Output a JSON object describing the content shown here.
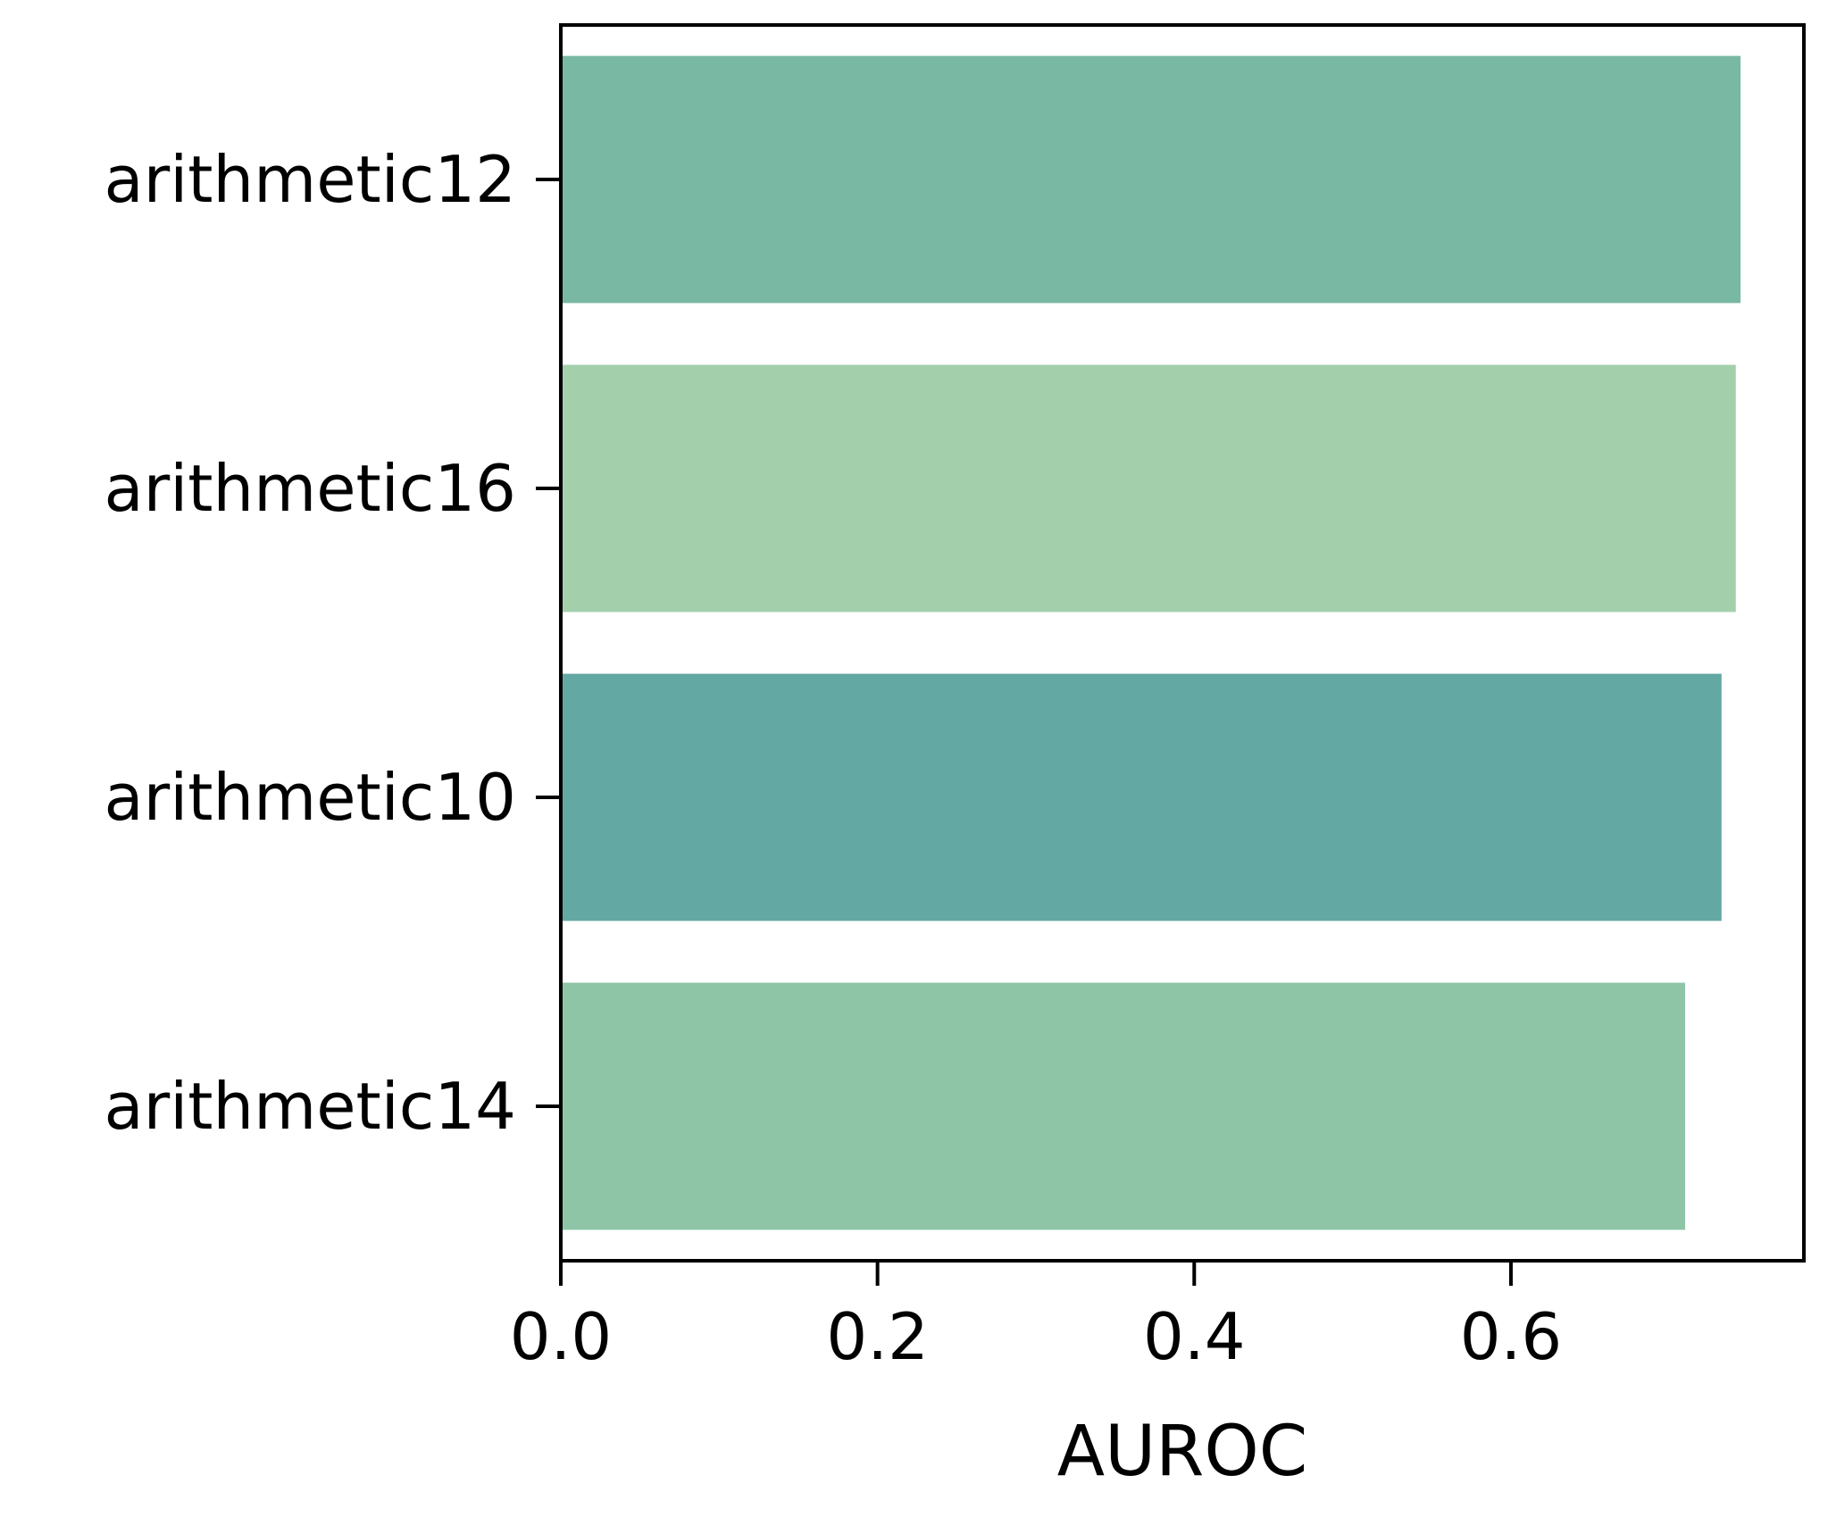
{
  "chart_data": {
    "type": "bar",
    "orientation": "horizontal",
    "title": "",
    "xlabel": "AUROC",
    "ylabel": "",
    "categories": [
      "arithmetic12",
      "arithmetic16",
      "arithmetic10",
      "arithmetic14"
    ],
    "values": [
      0.745,
      0.742,
      0.733,
      0.71
    ],
    "colors": [
      "#79b8a2",
      "#a3cfab",
      "#63a8a3",
      "#8ec5a6"
    ],
    "xlim": [
      0,
      0.785
    ],
    "xticks": [
      0.0,
      0.2,
      0.4,
      0.6
    ],
    "xtick_labels": [
      "0.0",
      "0.2",
      "0.4",
      "0.6"
    ],
    "grid": false,
    "legend": "none"
  }
}
